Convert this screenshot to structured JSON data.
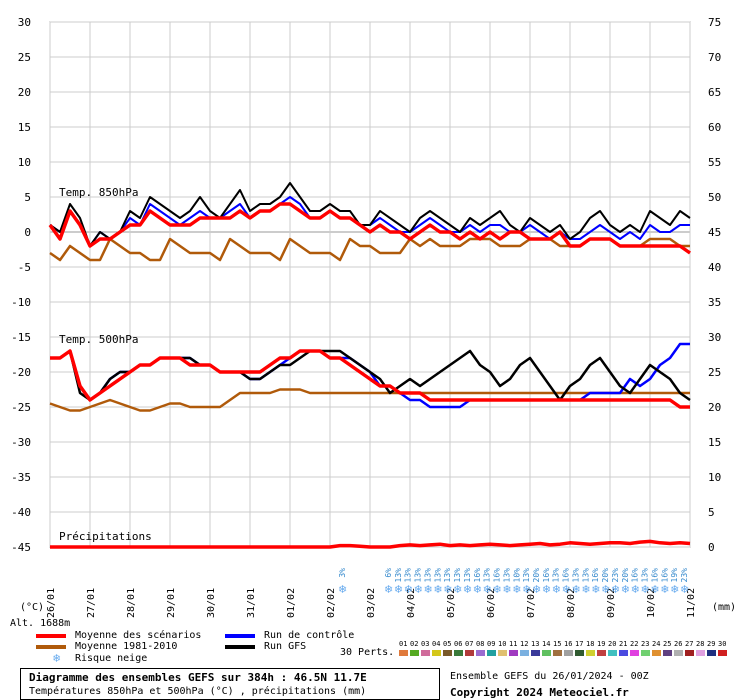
{
  "chart_data": {
    "type": "line",
    "left_axis": {
      "unit_label": "(°C)",
      "range": [
        -45,
        30
      ],
      "ticks": [
        30,
        25,
        20,
        15,
        10,
        5,
        0,
        -5,
        -10,
        -15,
        -20,
        -25,
        -30,
        -35,
        -40,
        -45
      ]
    },
    "right_axis": {
      "unit_label": "(mm)",
      "range": [
        0,
        75
      ],
      "ticks": [
        75,
        70,
        65,
        60,
        55,
        50,
        45,
        40,
        35,
        30,
        25,
        20,
        15,
        10,
        5,
        0
      ]
    },
    "x_dates": [
      "26/01",
      "27/01",
      "28/01",
      "29/01",
      "30/01",
      "31/01",
      "01/02",
      "02/02",
      "03/02",
      "04/02",
      "05/02",
      "06/02",
      "07/02",
      "08/02",
      "09/02",
      "10/02",
      "11/02"
    ],
    "grid": true,
    "section_labels": {
      "t850": "Temp. 850hPa",
      "t500": "Temp. 500hPa",
      "precip": "Précipitations"
    },
    "t850": {
      "mean_scenarios": [
        1,
        -1,
        3,
        1,
        -2,
        -1,
        -1,
        0,
        1,
        1,
        3,
        2,
        1,
        1,
        1,
        2,
        2,
        2,
        2,
        3,
        2,
        3,
        3,
        4,
        4,
        3,
        2,
        2,
        3,
        2,
        2,
        1,
        0,
        1,
        0,
        0,
        -1,
        0,
        1,
        0,
        0,
        -1,
        0,
        -1,
        0,
        -1,
        0,
        0,
        -1,
        -1,
        -1,
        0,
        -2,
        -2,
        -1,
        -1,
        -1,
        -2,
        -2,
        -2,
        -2,
        -2,
        -2,
        -2,
        -3
      ],
      "climatology": [
        -3,
        -4,
        -2,
        -3,
        -4,
        -4,
        -1,
        -2,
        -3,
        -3,
        -4,
        -4,
        -1,
        -2,
        -3,
        -3,
        -3,
        -4,
        -1,
        -2,
        -3,
        -3,
        -3,
        -4,
        -1,
        -2,
        -3,
        -3,
        -3,
        -4,
        -1,
        -2,
        -2,
        -3,
        -3,
        -3,
        -1,
        -2,
        -1,
        -2,
        -2,
        -2,
        -1,
        -1,
        -1,
        -2,
        -2,
        -2,
        -1,
        -1,
        -1,
        -2,
        -2,
        -2,
        -1,
        -1,
        -1,
        -2,
        -2,
        -2,
        -1,
        -1,
        -1,
        -2,
        -2
      ],
      "control": [
        1,
        0,
        3,
        1,
        -2,
        0,
        -1,
        0,
        2,
        1,
        4,
        3,
        2,
        1,
        2,
        3,
        2,
        2,
        3,
        4,
        2,
        3,
        3,
        4,
        5,
        4,
        2,
        2,
        3,
        2,
        2,
        1,
        1,
        2,
        1,
        0,
        0,
        1,
        2,
        1,
        0,
        0,
        1,
        0,
        1,
        1,
        0,
        0,
        1,
        0,
        -1,
        0,
        -1,
        -1,
        0,
        1,
        0,
        -1,
        0,
        -1,
        1,
        0,
        0,
        1,
        1
      ],
      "gfs": [
        1,
        0,
        4,
        2,
        -2,
        0,
        -1,
        0,
        3,
        2,
        5,
        4,
        3,
        2,
        3,
        5,
        3,
        2,
        4,
        6,
        3,
        4,
        4,
        5,
        7,
        5,
        3,
        3,
        4,
        3,
        3,
        1,
        1,
        3,
        2,
        1,
        0,
        2,
        3,
        2,
        1,
        0,
        2,
        1,
        2,
        3,
        1,
        0,
        2,
        1,
        0,
        1,
        -1,
        0,
        2,
        3,
        1,
        0,
        1,
        0,
        3,
        2,
        1,
        3,
        2
      ]
    },
    "t500": {
      "mean_scenarios": [
        -18,
        -18,
        -17,
        -22,
        -24,
        -23,
        -22,
        -21,
        -20,
        -19,
        -19,
        -18,
        -18,
        -18,
        -19,
        -19,
        -19,
        -20,
        -20,
        -20,
        -20,
        -20,
        -19,
        -18,
        -18,
        -17,
        -17,
        -17,
        -18,
        -18,
        -19,
        -20,
        -21,
        -22,
        -22,
        -23,
        -23,
        -23,
        -24,
        -24,
        -24,
        -24,
        -24,
        -24,
        -24,
        -24,
        -24,
        -24,
        -24,
        -24,
        -24,
        -24,
        -24,
        -24,
        -24,
        -24,
        -24,
        -24,
        -24,
        -24,
        -24,
        -24,
        -24,
        -25,
        -25
      ],
      "climatology": [
        -24.5,
        -25,
        -25.5,
        -25.5,
        -25,
        -24.5,
        -24,
        -24.5,
        -25,
        -25.5,
        -25.5,
        -25,
        -24.5,
        -24.5,
        -25,
        -25,
        -25,
        -25,
        -24,
        -23,
        -23,
        -23,
        -23,
        -22.5,
        -22.5,
        -22.5,
        -23,
        -23,
        -23,
        -23,
        -23,
        -23,
        -23,
        -23,
        -23,
        -23,
        -23,
        -23,
        -23,
        -23,
        -23,
        -23,
        -23,
        -23,
        -23,
        -23,
        -23,
        -23,
        -23,
        -23,
        -23,
        -23,
        -23,
        -23,
        -23,
        -23,
        -23,
        -23,
        -23,
        -23,
        -23,
        -23,
        -23,
        -23,
        -23
      ],
      "control": [
        -18,
        -18,
        -17,
        -22,
        -24,
        -23,
        -21,
        -20,
        -20,
        -19,
        -19,
        -18,
        -18,
        -18,
        -18,
        -19,
        -19,
        -20,
        -20,
        -20,
        -21,
        -21,
        -20,
        -19,
        -18,
        -17,
        -17,
        -17,
        -18,
        -18,
        -18,
        -19,
        -20,
        -22,
        -22,
        -23,
        -24,
        -24,
        -25,
        -25,
        -25,
        -25,
        -24,
        -24,
        -24,
        -24,
        -24,
        -24,
        -24,
        -24,
        -24,
        -24,
        -24,
        -24,
        -23,
        -23,
        -23,
        -23,
        -21,
        -22,
        -21,
        -19,
        -18,
        -16,
        -16
      ],
      "gfs": [
        -18,
        -18,
        -17,
        -23,
        -24,
        -23,
        -21,
        -20,
        -20,
        -19,
        -19,
        -18,
        -18,
        -18,
        -18,
        -19,
        -19,
        -20,
        -20,
        -20,
        -21,
        -21,
        -20,
        -19,
        -19,
        -18,
        -17,
        -17,
        -17,
        -17,
        -18,
        -19,
        -20,
        -21,
        -23,
        -22,
        -21,
        -22,
        -21,
        -20,
        -19,
        -18,
        -17,
        -19,
        -20,
        -22,
        -21,
        -19,
        -18,
        -20,
        -22,
        -24,
        -22,
        -21,
        -19,
        -18,
        -20,
        -22,
        -23,
        -21,
        -19,
        -20,
        -21,
        -23,
        -24
      ]
    },
    "precip": {
      "mean_scenarios": [
        0,
        0,
        0,
        0,
        0,
        0,
        0,
        0,
        0,
        0,
        0,
        0,
        0,
        0,
        0,
        0,
        0,
        0,
        0,
        0,
        0,
        0,
        0,
        0,
        0,
        0,
        0,
        0,
        0,
        0.2,
        0.2,
        0.1,
        0,
        0,
        0,
        0.2,
        0.3,
        0.2,
        0.3,
        0.4,
        0.2,
        0.3,
        0.2,
        0.3,
        0.4,
        0.3,
        0.2,
        0.3,
        0.4,
        0.5,
        0.3,
        0.4,
        0.6,
        0.5,
        0.4,
        0.5,
        0.6,
        0.6,
        0.5,
        0.7,
        0.8,
        0.6,
        0.5,
        0.6,
        0.5
      ]
    },
    "snow_risk_pct": [
      "3%",
      "6%",
      "13%",
      "13%",
      "13%",
      "13%",
      "13%",
      "13%",
      "13%",
      "13%",
      "16%",
      "13%",
      "16%",
      "13%",
      "10%",
      "13%",
      "20%",
      "16%",
      "13%",
      "16%",
      "13%",
      "13%",
      "16%",
      "20%",
      "23%",
      "20%",
      "16%",
      "13%",
      "16%",
      "16%",
      "19%",
      "23%"
    ],
    "legend": {
      "mean_scenarios": "Moyenne des scénarios",
      "climatology": "Moyenne 1981-2010",
      "snow_risk": "Risque neige",
      "control": "Run de contrôle",
      "gfs": "Run GFS"
    },
    "perts_label": "30 Perts.",
    "perts_numbers": [
      "01",
      "02",
      "03",
      "04",
      "05",
      "06",
      "07",
      "08",
      "09",
      "10",
      "11",
      "12",
      "13",
      "14",
      "15",
      "16",
      "17",
      "18",
      "19",
      "20",
      "21",
      "22",
      "23",
      "24",
      "25",
      "26",
      "27",
      "28",
      "29",
      "30"
    ],
    "perts_colors": [
      "#e07a3c",
      "#55aa22",
      "#d06b9b",
      "#d4c71a",
      "#7a5a2a",
      "#3a7a3a",
      "#b03a3a",
      "#9a6bd0",
      "#22a0a0",
      "#e0c070",
      "#a03ac0",
      "#7ab0e0",
      "#3a3a9a",
      "#60c060",
      "#a07040",
      "#a0a0a0",
      "#305a30",
      "#d0d030",
      "#c04040",
      "#40c0c0",
      "#4a4ae0",
      "#e040e0",
      "#70d070",
      "#e09030",
      "#604080",
      "#b0b0b0",
      "#a02020",
      "#e0a0e0",
      "#203080",
      "#d02020"
    ],
    "colors": {
      "mean": "#ff0000",
      "clim": "#b05a0a",
      "control": "#0000ff",
      "gfs": "#000000",
      "snow": "#66aaee"
    }
  },
  "altitude": "Alt. 1688m",
  "footer": {
    "title": "Diagramme des ensembles GEFS sur 384h : 46.5N 11.7E",
    "subtitle": "Températures 850hPa et 500hPa (°C) , précipitations (mm)",
    "run_info": "Ensemble GEFS du 26/01/2024 - 00Z",
    "copyright": "Copyright 2024 Meteociel.fr"
  }
}
